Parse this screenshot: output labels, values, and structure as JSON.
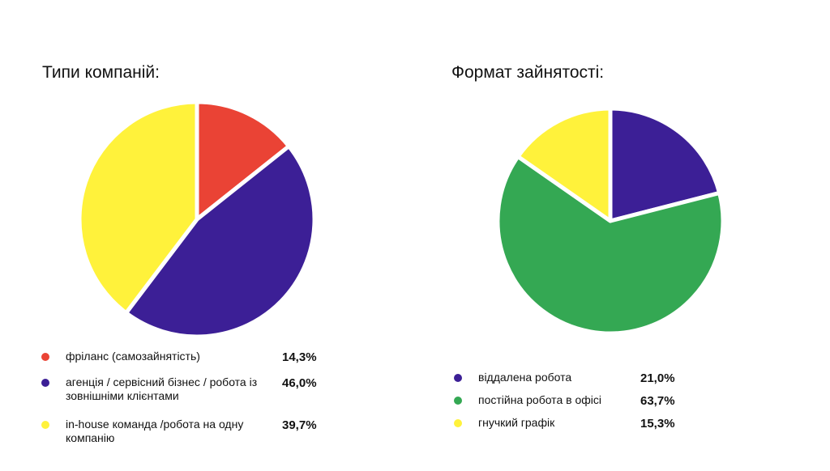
{
  "chart_data": [
    {
      "type": "pie",
      "title": "Типи компаній:",
      "categories": [
        "фріланс (самозайнятість)",
        "агенція / сервісний бізнес / робота із зовнішніми клієнтами",
        "in-house команда /робота на одну компанію"
      ],
      "values": [
        14.3,
        46.0,
        39.7
      ],
      "value_labels": [
        "14,3%",
        "46,0%",
        "39,7%"
      ],
      "colors": [
        "#ea4335",
        "#3c1f96",
        "#fff23b"
      ],
      "legend": "bottom"
    },
    {
      "type": "pie",
      "title": "Формат зайнятості:",
      "categories": [
        "віддалена робота",
        "постійна робота в офісі",
        "гнучкий графік"
      ],
      "values": [
        21.0,
        63.7,
        15.3
      ],
      "value_labels": [
        "21,0%",
        "63,7%",
        "15,3%"
      ],
      "colors": [
        "#3c1f96",
        "#34a853",
        "#fff23b"
      ],
      "legend": "bottom"
    }
  ]
}
